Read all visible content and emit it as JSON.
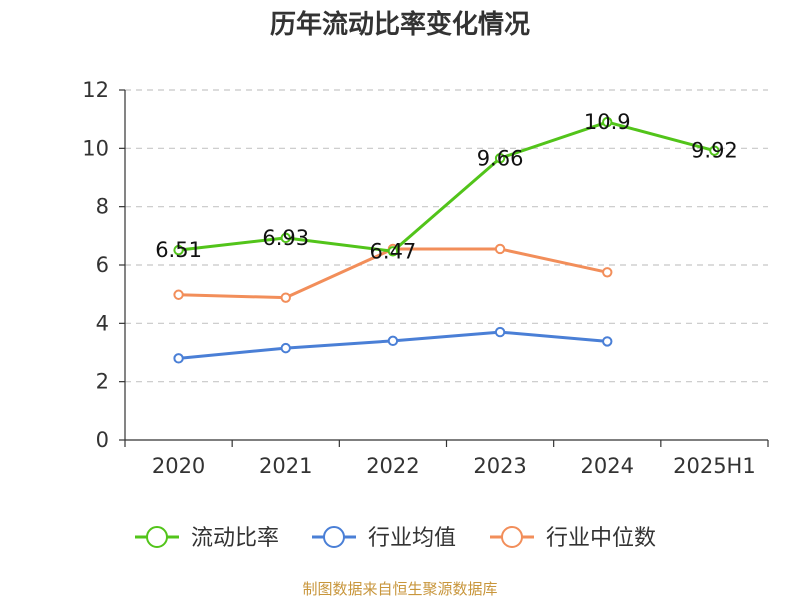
{
  "chart_data": {
    "type": "line",
    "title": "历年流动比率变化情况",
    "categories": [
      "2020",
      "2021",
      "2022",
      "2023",
      "2024",
      "2025H1"
    ],
    "ylim": [
      0,
      12
    ],
    "yticks": [
      0,
      2,
      4,
      6,
      8,
      10,
      12
    ],
    "grid": true,
    "legend_position": "bottom",
    "series": [
      {
        "name": "流动比率",
        "color": "#52c41a",
        "values": [
          6.51,
          6.93,
          6.47,
          9.66,
          10.9,
          9.92
        ],
        "labels": [
          "6.51",
          "6.93",
          "6.47",
          "9.66",
          "10.9",
          "9.92"
        ],
        "show_labels": true
      },
      {
        "name": "行业均值",
        "color": "#4a7fd6",
        "values": [
          2.8,
          3.15,
          3.4,
          3.7,
          3.38,
          null
        ],
        "show_labels": false
      },
      {
        "name": "行业中位数",
        "color": "#f28e5a",
        "values": [
          4.98,
          4.88,
          6.55,
          6.55,
          5.75,
          null
        ],
        "show_labels": false
      }
    ],
    "source": "制图数据来自恒生聚源数据库"
  }
}
